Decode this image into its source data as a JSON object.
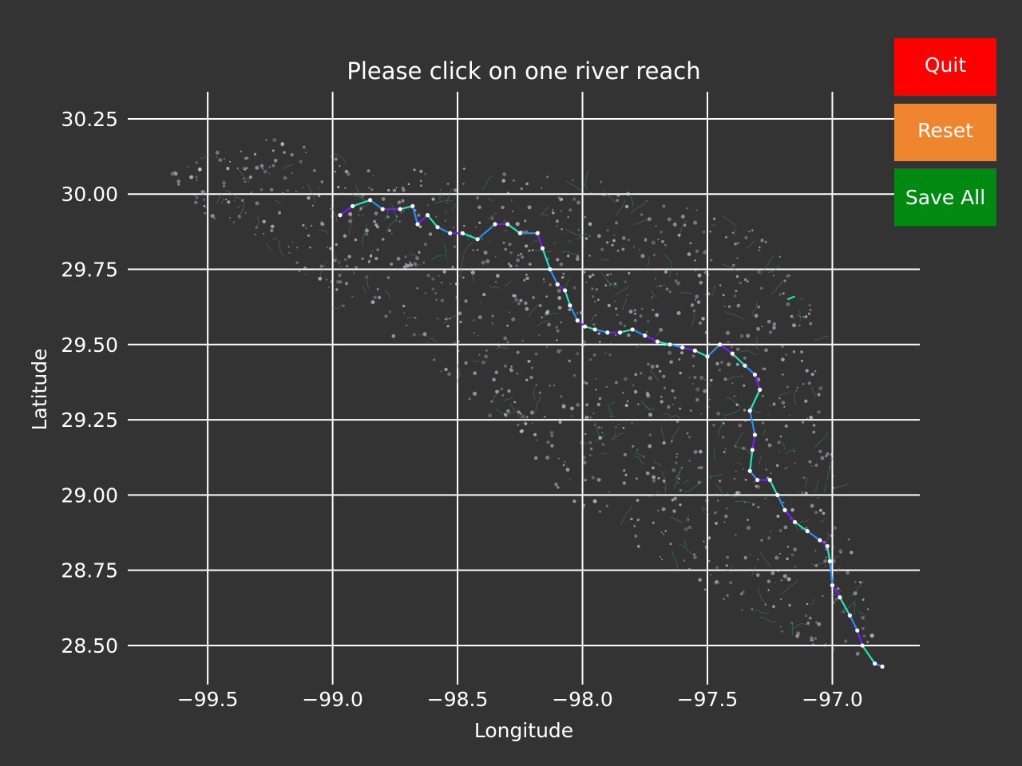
{
  "title": "Please click on one river reach",
  "buttons": {
    "quit": {
      "label": "Quit",
      "color": "#ff0000"
    },
    "reset": {
      "label": "Reset",
      "color": "#f08530"
    },
    "save": {
      "label": "Save All",
      "color": "#008a12"
    }
  },
  "colors": {
    "background": "#333333",
    "grid": "#ffffff",
    "points": "#d8d8e0",
    "tributaries": "#2e9e73",
    "main_river_a": "#7a18ff",
    "main_river_b": "#2a8cff",
    "main_river_c": "#1ce8c0"
  },
  "chart_data": {
    "type": "scatter",
    "title": "Please click on one river reach",
    "xlabel": "Longitude",
    "ylabel": "Latitude",
    "xlim": [
      -99.82,
      -96.65
    ],
    "ylim": [
      28.37,
      30.34
    ],
    "xticks": [
      -99.5,
      -99.0,
      -98.5,
      -98.0,
      -97.5,
      -97.0
    ],
    "xtick_labels": [
      "−99.5",
      "−99.0",
      "−98.5",
      "−98.0",
      "−97.5",
      "−97.0"
    ],
    "yticks": [
      28.5,
      28.75,
      29.0,
      29.25,
      29.5,
      29.75,
      30.0,
      30.25
    ],
    "ytick_labels": [
      "28.50",
      "28.75",
      "29.00",
      "29.25",
      "29.50",
      "29.75",
      "30.00",
      "30.25"
    ],
    "grid": true,
    "basin_outline": [
      [
        -99.65,
        30.07
      ],
      [
        -99.45,
        30.17
      ],
      [
        -99.2,
        30.19
      ],
      [
        -98.95,
        30.12
      ],
      [
        -98.75,
        30.08
      ],
      [
        -98.5,
        30.1
      ],
      [
        -98.25,
        30.07
      ],
      [
        -98.0,
        30.06
      ],
      [
        -97.75,
        30.0
      ],
      [
        -97.5,
        29.94
      ],
      [
        -97.3,
        29.88
      ],
      [
        -97.1,
        29.7
      ],
      [
        -97.05,
        29.5
      ],
      [
        -97.02,
        29.25
      ],
      [
        -96.98,
        29.0
      ],
      [
        -96.9,
        28.8
      ],
      [
        -96.85,
        28.6
      ],
      [
        -96.83,
        28.45
      ],
      [
        -96.95,
        28.47
      ],
      [
        -97.15,
        28.52
      ],
      [
        -97.4,
        28.62
      ],
      [
        -97.65,
        28.75
      ],
      [
        -97.9,
        28.87
      ],
      [
        -98.1,
        29.02
      ],
      [
        -98.28,
        29.2
      ],
      [
        -98.5,
        29.35
      ],
      [
        -98.72,
        29.5
      ],
      [
        -98.95,
        29.62
      ],
      [
        -99.15,
        29.75
      ],
      [
        -99.35,
        29.85
      ],
      [
        -99.55,
        29.95
      ]
    ],
    "main_river": [
      [
        -98.97,
        29.93
      ],
      [
        -98.92,
        29.96
      ],
      [
        -98.85,
        29.98
      ],
      [
        -98.8,
        29.95
      ],
      [
        -98.73,
        29.95
      ],
      [
        -98.68,
        29.96
      ],
      [
        -98.66,
        29.9
      ],
      [
        -98.62,
        29.93
      ],
      [
        -98.58,
        29.89
      ],
      [
        -98.53,
        29.87
      ],
      [
        -98.48,
        29.87
      ],
      [
        -98.42,
        29.85
      ],
      [
        -98.35,
        29.9
      ],
      [
        -98.3,
        29.9
      ],
      [
        -98.25,
        29.87
      ],
      [
        -98.18,
        29.87
      ],
      [
        -98.16,
        29.82
      ],
      [
        -98.13,
        29.75
      ],
      [
        -98.1,
        29.7
      ],
      [
        -98.07,
        29.68
      ],
      [
        -98.05,
        29.63
      ],
      [
        -98.02,
        29.58
      ],
      [
        -97.99,
        29.56
      ],
      [
        -97.95,
        29.55
      ],
      [
        -97.9,
        29.54
      ],
      [
        -97.85,
        29.54
      ],
      [
        -97.8,
        29.55
      ],
      [
        -97.75,
        29.53
      ],
      [
        -97.7,
        29.51
      ],
      [
        -97.65,
        29.5
      ],
      [
        -97.6,
        29.49
      ],
      [
        -97.55,
        29.48
      ],
      [
        -97.5,
        29.46
      ],
      [
        -97.45,
        29.5
      ],
      [
        -97.4,
        29.47
      ],
      [
        -97.35,
        29.43
      ],
      [
        -97.31,
        29.4
      ],
      [
        -97.29,
        29.35
      ],
      [
        -97.33,
        29.28
      ],
      [
        -97.31,
        29.2
      ],
      [
        -97.32,
        29.15
      ],
      [
        -97.33,
        29.08
      ],
      [
        -97.3,
        29.05
      ],
      [
        -97.25,
        29.05
      ],
      [
        -97.22,
        29.0
      ],
      [
        -97.19,
        28.95
      ],
      [
        -97.15,
        28.91
      ],
      [
        -97.1,
        28.88
      ],
      [
        -97.05,
        28.85
      ],
      [
        -97.02,
        28.83
      ],
      [
        -97.01,
        28.78
      ],
      [
        -97.0,
        28.7
      ],
      [
        -96.97,
        28.66
      ],
      [
        -96.93,
        28.6
      ],
      [
        -96.9,
        28.55
      ],
      [
        -96.88,
        28.5
      ],
      [
        -96.83,
        28.44
      ],
      [
        -96.8,
        28.43
      ]
    ],
    "tributary_stub": [
      [
        -97.18,
        29.65
      ],
      [
        -97.15,
        29.66
      ]
    ]
  }
}
